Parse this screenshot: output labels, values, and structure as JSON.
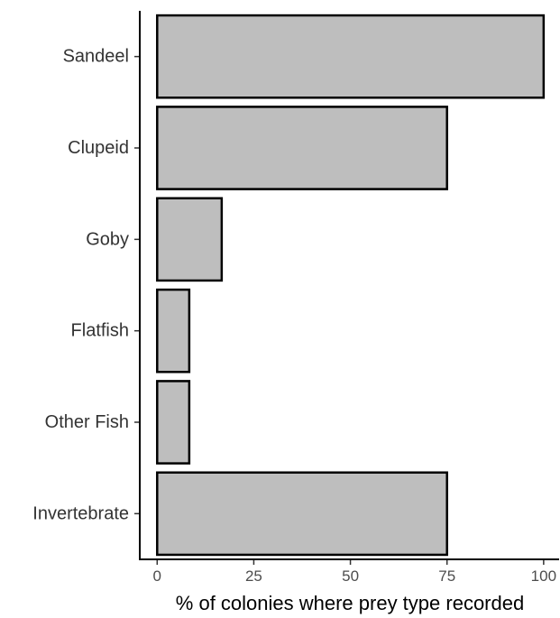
{
  "chart_data": {
    "type": "bar",
    "orientation": "horizontal",
    "categories": [
      "Sandeel",
      "Clupeid",
      "Goby",
      "Flatfish",
      "Other Fish",
      "Invertebrate"
    ],
    "values": [
      100,
      75,
      16.7,
      8.3,
      8.3,
      75
    ],
    "xlabel": "% of colonies where prey type recorded",
    "ylabel": "",
    "xlim": [
      -4.5,
      104
    ],
    "xticks": [
      0,
      25,
      50,
      75,
      100
    ],
    "xtick_labels": [
      "0",
      "25",
      "50",
      "75",
      "100"
    ],
    "grid": false,
    "legend": "none",
    "bar_fill": "#bebebe",
    "bar_stroke": "#000000"
  }
}
